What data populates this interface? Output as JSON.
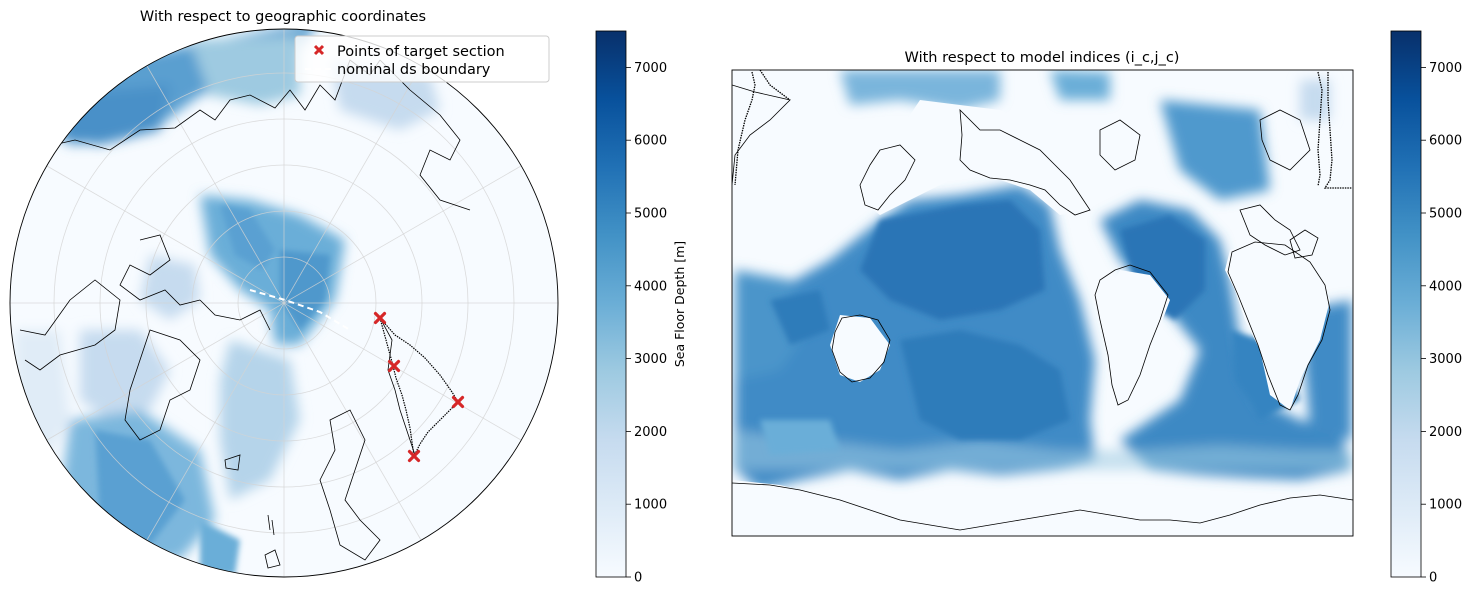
{
  "chart_data": [
    {
      "type": "heatmap",
      "projection": "north-polar-stereographic",
      "title": "With respect to geographic coordinates",
      "legend": {
        "placement": "top-right",
        "entries": [
          {
            "label": "Points of target section",
            "marker": "x",
            "color": "#d62728"
          },
          {
            "label": "nominal ds boundary",
            "style": "dashed",
            "color": "#ffffff"
          }
        ]
      },
      "target_section_points": 4,
      "colorbar": {
        "label": "Sea Floor Depth [m]",
        "range": [
          0,
          7500
        ],
        "ticks": [
          "0",
          "1000",
          "2000",
          "3000",
          "4000",
          "5000",
          "6000",
          "7000"
        ],
        "colormap": "Blues"
      },
      "grid": true
    },
    {
      "type": "heatmap",
      "projection": "model-grid",
      "title": "With respect to model indices (i_c,j_c)",
      "colorbar": {
        "range": [
          0,
          7500
        ],
        "ticks": [
          "0",
          "1000",
          "2000",
          "3000",
          "4000",
          "5000",
          "6000",
          "7000"
        ],
        "colormap": "Blues"
      },
      "grid": false
    }
  ],
  "colors": {
    "blues_light": "#f7fbff",
    "blues_dark": "#08306b",
    "marker": "#d62728",
    "coast": "#000000"
  }
}
